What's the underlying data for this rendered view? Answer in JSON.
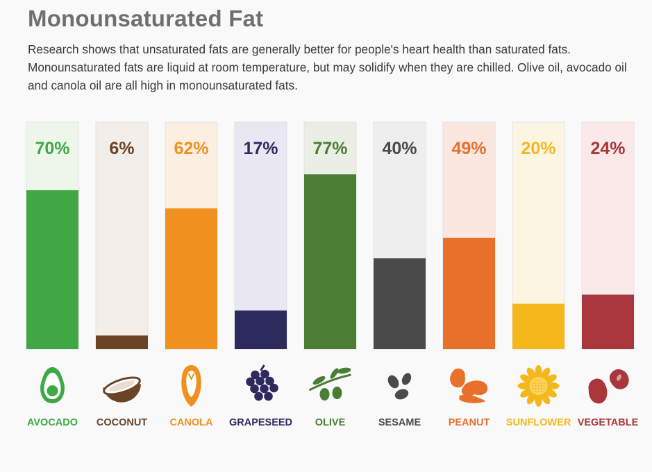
{
  "header": {
    "title": "Monounsaturated Fat",
    "description": "Research shows that unsaturated fats are generally better for people's heart health than saturated fats. Monounsaturated fats are liquid at room temperature, but may solidify when they are chilled. Olive oil, avocado oil and canola oil are all high in monounsaturated fats."
  },
  "chart_data": {
    "type": "bar",
    "title": "Monounsaturated Fat",
    "categories": [
      "AVOCADO",
      "COCONUT",
      "CANOLA",
      "GRAPESEED",
      "OLIVE",
      "SESAME",
      "PEANUT",
      "SUNFLOWER",
      "VEGETABLE"
    ],
    "values": [
      70,
      6,
      62,
      17,
      77,
      40,
      49,
      20,
      24
    ],
    "labels": [
      "70%",
      "6%",
      "62%",
      "17%",
      "77%",
      "40%",
      "49%",
      "20%",
      "24%"
    ],
    "ylim": [
      0,
      100
    ],
    "grid": false,
    "legend": "none",
    "colors": [
      "#3fa845",
      "#6b4426",
      "#f0901e",
      "#2d2a5e",
      "#4a7e35",
      "#4a4a4a",
      "#e8702a",
      "#f5b81c",
      "#a8363a"
    ],
    "bg_colors": [
      "#eef6ea",
      "#f3eeea",
      "#fcefe2",
      "#e8e7f2",
      "#e9efe4",
      "#eeeeee",
      "#fbe6e0",
      "#fcf5e2",
      "#fbe8e8"
    ],
    "icons": [
      "avocado-icon",
      "coconut-icon",
      "canola-icon",
      "grapeseed-icon",
      "olive-icon",
      "sesame-icon",
      "peanut-icon",
      "sunflower-icon",
      "vegetable-icon"
    ]
  }
}
